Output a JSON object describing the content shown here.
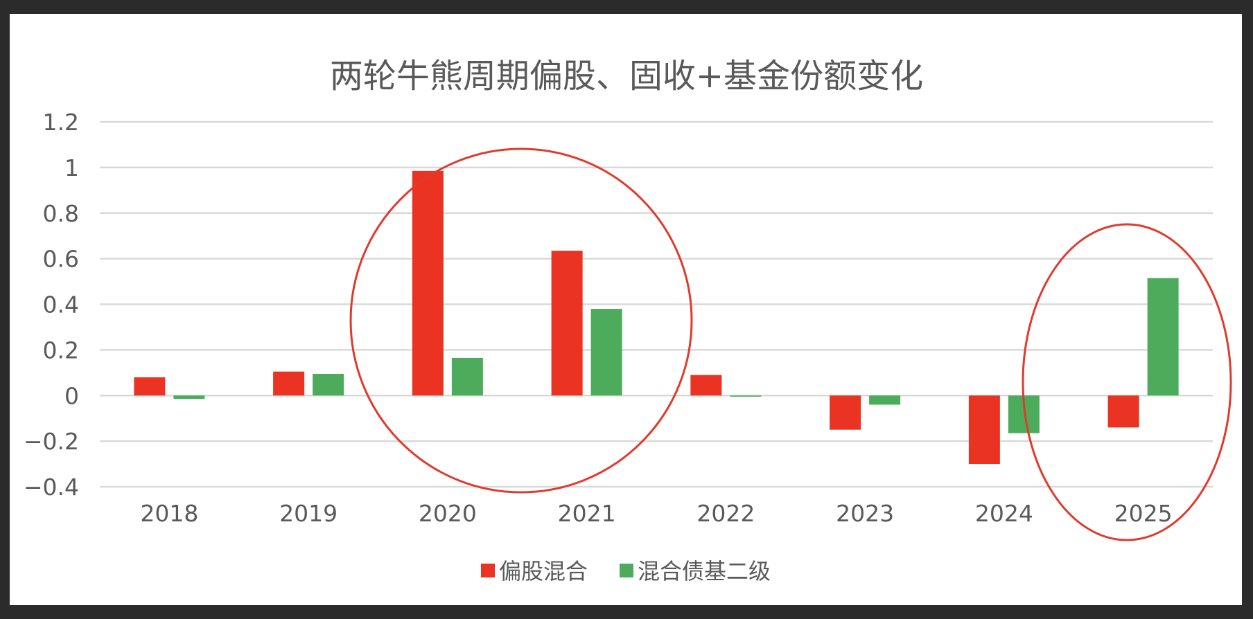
{
  "chart_data": {
    "type": "bar",
    "title": "两轮牛熊周期偏股、固收+基金份额变化",
    "categories": [
      "2018",
      "2019",
      "2020",
      "2021",
      "2022",
      "2023",
      "2024",
      "2025"
    ],
    "series": [
      {
        "name": "偏股混合",
        "color": "#ea3323",
        "values": [
          0.08,
          0.105,
          0.985,
          0.635,
          0.09,
          -0.15,
          -0.3,
          -0.14
        ]
      },
      {
        "name": "混合债基二级",
        "color": "#4dac5c",
        "values": [
          -0.015,
          0.095,
          0.165,
          0.38,
          -0.005,
          -0.04,
          -0.165,
          0.515
        ]
      }
    ],
    "y_ticks": [
      "1.2",
      "1",
      "0.8",
      "0.6",
      "0.4",
      "0.2",
      "0",
      "−0.2",
      "−0.4"
    ],
    "ylim": [
      -0.4,
      1.2
    ],
    "grid": true,
    "legend": "bottom-center",
    "annotations": [
      {
        "shape": "ellipse",
        "color": "#e03a2c",
        "around": [
          "2020",
          "2021"
        ]
      },
      {
        "shape": "ellipse",
        "color": "#e03a2c",
        "around": [
          "2025"
        ]
      }
    ]
  }
}
